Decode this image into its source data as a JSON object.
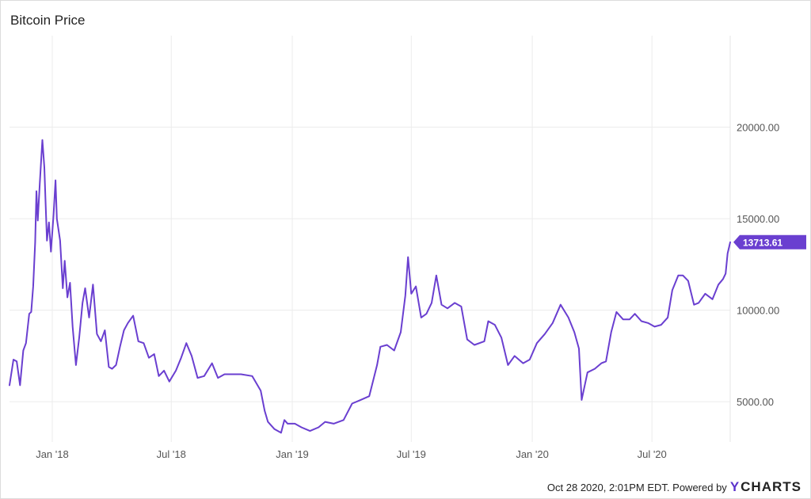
{
  "chart_data": {
    "type": "line",
    "title": "Bitcoin Price",
    "x_ticks": [
      "Jan '18",
      "Jul '18",
      "Jan '19",
      "Jul '19",
      "Jan '20",
      "Jul '20"
    ],
    "y_ticks": [
      "5000.00",
      "10000.00",
      "15000.00",
      "20000.00"
    ],
    "ylim": [
      2800,
      25000
    ],
    "xlim": [
      "2017-10-28",
      "2020-10-28"
    ],
    "grid": true,
    "last_value_label": "13713.61",
    "line_color": "#6a3fd0",
    "series": [
      {
        "x": [
          "2017-10-28",
          "2017-11-03",
          "2017-11-08",
          "2017-11-13",
          "2017-11-18",
          "2017-11-22",
          "2017-11-27",
          "2017-11-30",
          "2017-12-03",
          "2017-12-06",
          "2017-12-08",
          "2017-12-10",
          "2017-12-13",
          "2017-12-17",
          "2017-12-20",
          "2017-12-22",
          "2017-12-24",
          "2017-12-27",
          "2017-12-30",
          "2018-01-03",
          "2018-01-06",
          "2018-01-08",
          "2018-01-13",
          "2018-01-17",
          "2018-01-20",
          "2018-01-24",
          "2018-01-28",
          "2018-02-01",
          "2018-02-06",
          "2018-02-11",
          "2018-02-16",
          "2018-02-20",
          "2018-02-26",
          "2018-03-04",
          "2018-03-10",
          "2018-03-16",
          "2018-03-22",
          "2018-03-28",
          "2018-04-02",
          "2018-04-08",
          "2018-04-14",
          "2018-04-20",
          "2018-04-26",
          "2018-05-04",
          "2018-05-12",
          "2018-05-20",
          "2018-05-28",
          "2018-06-05",
          "2018-06-12",
          "2018-06-20",
          "2018-06-28",
          "2018-07-08",
          "2018-07-16",
          "2018-07-24",
          "2018-08-01",
          "2018-08-10",
          "2018-08-20",
          "2018-09-01",
          "2018-09-10",
          "2018-09-20",
          "2018-10-01",
          "2018-10-15",
          "2018-11-01",
          "2018-11-14",
          "2018-11-20",
          "2018-11-25",
          "2018-12-05",
          "2018-12-15",
          "2018-12-20",
          "2018-12-25",
          "2019-01-05",
          "2019-01-15",
          "2019-01-28",
          "2019-02-10",
          "2019-02-20",
          "2019-03-05",
          "2019-03-20",
          "2019-04-02",
          "2019-04-15",
          "2019-04-28",
          "2019-05-10",
          "2019-05-15",
          "2019-05-25",
          "2019-06-05",
          "2019-06-15",
          "2019-06-22",
          "2019-06-26",
          "2019-07-01",
          "2019-07-08",
          "2019-07-16",
          "2019-07-24",
          "2019-08-01",
          "2019-08-08",
          "2019-08-16",
          "2019-08-25",
          "2019-09-05",
          "2019-09-15",
          "2019-09-24",
          "2019-10-05",
          "2019-10-20",
          "2019-10-26",
          "2019-11-05",
          "2019-11-15",
          "2019-11-25",
          "2019-12-05",
          "2019-12-18",
          "2019-12-28",
          "2020-01-08",
          "2020-01-20",
          "2020-02-01",
          "2020-02-13",
          "2020-02-25",
          "2020-03-05",
          "2020-03-12",
          "2020-03-16",
          "2020-03-25",
          "2020-04-05",
          "2020-04-15",
          "2020-04-22",
          "2020-04-30",
          "2020-05-08",
          "2020-05-18",
          "2020-05-28",
          "2020-06-05",
          "2020-06-15",
          "2020-06-25",
          "2020-07-05",
          "2020-07-15",
          "2020-07-25",
          "2020-08-01",
          "2020-08-10",
          "2020-08-17",
          "2020-08-25",
          "2020-09-03",
          "2020-09-10",
          "2020-09-20",
          "2020-10-01",
          "2020-10-10",
          "2020-10-17",
          "2020-10-21",
          "2020-10-24",
          "2020-10-28"
        ],
        "values": [
          5900,
          7300,
          7200,
          5900,
          7800,
          8200,
          9800,
          9900,
          11300,
          13700,
          16500,
          14900,
          16900,
          19300,
          17800,
          15700,
          13800,
          14800,
          13200,
          15200,
          17100,
          15000,
          13800,
          11200,
          12700,
          10700,
          11500,
          9100,
          7000,
          8500,
          10400,
          11200,
          9600,
          11400,
          8700,
          8300,
          8900,
          6900,
          6800,
          7000,
          8000,
          8900,
          9300,
          9700,
          8300,
          8200,
          7400,
          7600,
          6400,
          6700,
          6100,
          6700,
          7400,
          8200,
          7500,
          6300,
          6400,
          7100,
          6300,
          6500,
          6500,
          6500,
          6400,
          5600,
          4500,
          3900,
          3500,
          3300,
          4000,
          3800,
          3800,
          3600,
          3400,
          3600,
          3900,
          3800,
          4000,
          4900,
          5100,
          5300,
          7000,
          8000,
          8100,
          7800,
          8800,
          10800,
          12900,
          10900,
          11300,
          9600,
          9800,
          10400,
          11900,
          10300,
          10100,
          10400,
          10200,
          8400,
          8100,
          8300,
          9400,
          9200,
          8500,
          7000,
          7500,
          7100,
          7300,
          8200,
          8700,
          9300,
          10300,
          9600,
          8800,
          7900,
          5100,
          6600,
          6800,
          7100,
          7200,
          8800,
          9900,
          9500,
          9500,
          9800,
          9400,
          9300,
          9100,
          9200,
          9600,
          11100,
          11900,
          11900,
          11600,
          10300,
          10400,
          10900,
          10600,
          11400,
          11700,
          12000,
          13100,
          13713.61
        ]
      }
    ]
  }
}
